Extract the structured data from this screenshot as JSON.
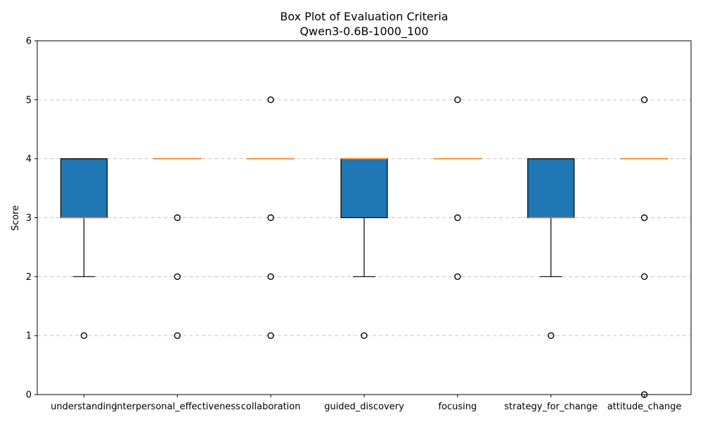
{
  "title": "Box Plot of Evaluation Criteria",
  "subtitle": "Qwen3-0.6B-1000_100",
  "colors": {
    "box_fill": "#1f77b4",
    "median": "#ff7f0e",
    "grid": "#c4c4c4"
  },
  "chart_data": {
    "type": "box",
    "title": "Box Plot of Evaluation Criteria",
    "subtitle": "Qwen3-0.6B-1000_100",
    "xlabel": "",
    "ylabel": "Score",
    "ylim": [
      0,
      6
    ],
    "yticks": [
      0,
      1,
      2,
      3,
      4,
      5,
      6
    ],
    "grid": "y-dashed",
    "categories": [
      "understanding",
      "interpersonal_effectiveness",
      "collaboration",
      "guided_discovery",
      "focusing",
      "strategy_for_change",
      "attitude_change"
    ],
    "boxes": [
      {
        "category": "understanding",
        "whisker_low": 2,
        "q1": 3,
        "median": 3,
        "q3": 4,
        "whisker_high": 4,
        "outliers": [
          1
        ]
      },
      {
        "category": "interpersonal_effectiveness",
        "whisker_low": 4,
        "q1": 4,
        "median": 4,
        "q3": 4,
        "whisker_high": 4,
        "outliers": [
          1,
          2,
          3
        ]
      },
      {
        "category": "collaboration",
        "whisker_low": 4,
        "q1": 4,
        "median": 4,
        "q3": 4,
        "whisker_high": 4,
        "outliers": [
          1,
          2,
          3,
          5
        ]
      },
      {
        "category": "guided_discovery",
        "whisker_low": 2,
        "q1": 3,
        "median": 4,
        "q3": 4,
        "whisker_high": 4,
        "outliers": [
          1
        ]
      },
      {
        "category": "focusing",
        "whisker_low": 4,
        "q1": 4,
        "median": 4,
        "q3": 4,
        "whisker_high": 4,
        "outliers": [
          2,
          3,
          5
        ]
      },
      {
        "category": "strategy_for_change",
        "whisker_low": 2,
        "q1": 3,
        "median": 3,
        "q3": 4,
        "whisker_high": 4,
        "outliers": [
          1
        ]
      },
      {
        "category": "attitude_change",
        "whisker_low": 4,
        "q1": 4,
        "median": 4,
        "q3": 4,
        "whisker_high": 4,
        "outliers": [
          0,
          2,
          3,
          5
        ]
      }
    ]
  }
}
